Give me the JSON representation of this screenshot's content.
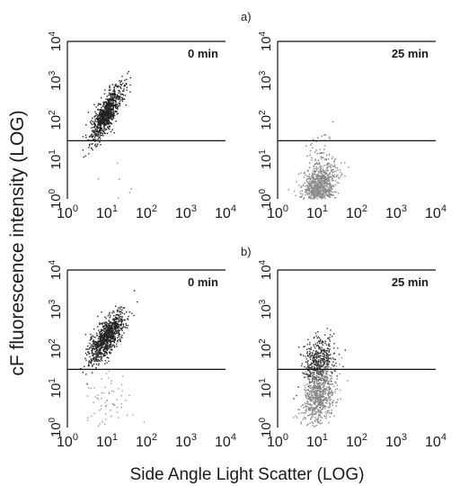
{
  "figure": {
    "ylabel": "cF fluorescence intensity (LOG)",
    "xlabel": "Side Angle Light Scatter (LOG)"
  },
  "chart_data": {
    "type": "scatter",
    "scale": "log",
    "xlim": [
      1,
      10000
    ],
    "ylim": [
      1,
      10000
    ],
    "x_tick_labels": [
      "10",
      "10",
      "10",
      "10",
      "10"
    ],
    "x_tick_exponents": [
      "0",
      "1",
      "2",
      "3",
      "4"
    ],
    "y_tick_labels": [
      "10",
      "10",
      "10",
      "10",
      "10"
    ],
    "y_tick_exponents": [
      "0",
      "1",
      "2",
      "3",
      "4"
    ],
    "threshold_y": 30,
    "point_color": "#555555",
    "rows": [
      {
        "label": "a)",
        "panels": [
          {
            "title": "0 min",
            "clusters": [
              {
                "center_x": 10,
                "center_y": 150,
                "spread_log_x": 0.2,
                "spread_log_y": 0.35,
                "correlation": 0.8,
                "count": 900,
                "shade": "#222222"
              },
              {
                "center_x": 10,
                "center_y": 5,
                "spread_log_x": 0.35,
                "spread_log_y": 0.4,
                "correlation": 0.0,
                "count": 6,
                "shade": "#888888"
              }
            ]
          },
          {
            "title": "25 min",
            "clusters": [
              {
                "center_x": 11,
                "center_y": 2,
                "spread_log_x": 0.22,
                "spread_log_y": 0.3,
                "correlation": 0.3,
                "count": 900,
                "shade": "#8a8a8a"
              },
              {
                "center_x": 12,
                "center_y": 15,
                "spread_log_x": 0.25,
                "spread_log_y": 0.35,
                "correlation": 0.2,
                "count": 50,
                "shade": "#777777"
              }
            ]
          }
        ]
      },
      {
        "label": "b)",
        "panels": [
          {
            "title": "0 min",
            "clusters": [
              {
                "center_x": 10,
                "center_y": 200,
                "spread_log_x": 0.22,
                "spread_log_y": 0.32,
                "correlation": 0.7,
                "count": 900,
                "shade": "#252525"
              },
              {
                "center_x": 10,
                "center_y": 4,
                "spread_log_x": 0.3,
                "spread_log_y": 0.45,
                "correlation": 0.0,
                "count": 70,
                "shade": "#999999"
              }
            ]
          },
          {
            "title": "25 min",
            "clusters": [
              {
                "center_x": 11,
                "center_y": 50,
                "spread_log_x": 0.2,
                "spread_log_y": 0.35,
                "correlation": 0.3,
                "count": 450,
                "shade": "#333333"
              },
              {
                "center_x": 11,
                "center_y": 6,
                "spread_log_x": 0.2,
                "spread_log_y": 0.35,
                "correlation": 0.3,
                "count": 700,
                "shade": "#888888"
              }
            ]
          }
        ]
      }
    ]
  }
}
